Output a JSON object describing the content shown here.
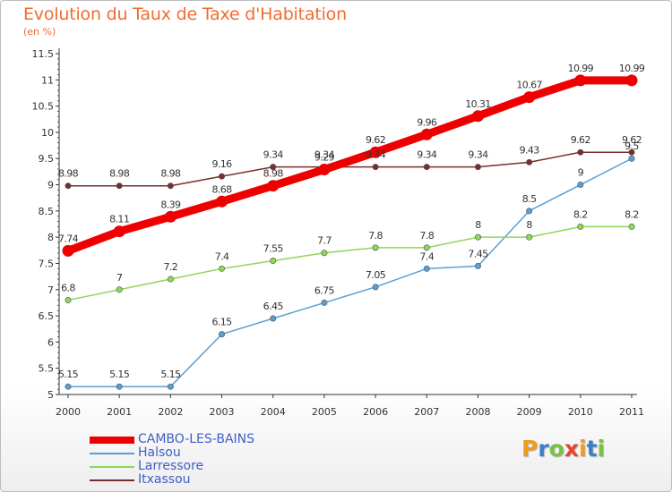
{
  "header": {
    "title": "Evolution du Taux de Taxe d'Habitation",
    "subtitle": "(en %)"
  },
  "colors": {
    "title": "#f26b30",
    "axis": "#333333",
    "legend_text": "#3e5fc8"
  },
  "logo": {
    "text": "Proxiti",
    "letters": [
      "P",
      "r",
      "o",
      "x",
      "i",
      "t",
      "i"
    ],
    "letter_colors": [
      "#f29a1d",
      "#3b82c4",
      "#7cc142",
      "#e8452c",
      "#f29a1d",
      "#3b82c4",
      "#7cc142"
    ]
  },
  "chart_data": {
    "type": "line",
    "title": "Evolution du Taux de Taxe d'Habitation",
    "subtitle": "(en %)",
    "xlabel": "",
    "ylabel": "",
    "x": [
      "2000",
      "2001",
      "2002",
      "2003",
      "2004",
      "2005",
      "2006",
      "2007",
      "2008",
      "2009",
      "2010",
      "2011"
    ],
    "ylim": [
      5,
      11.5
    ],
    "yticks": [
      5,
      5.5,
      6,
      6.5,
      7,
      7.5,
      8,
      8.5,
      9,
      9.5,
      10,
      10.5,
      11,
      11.5
    ],
    "ytick_labels": [
      "5",
      "5.5",
      "6",
      "6.5",
      "7",
      "7.5",
      "8",
      "8.5",
      "9",
      "9.5",
      "10",
      "10.5",
      "11",
      "11.5"
    ],
    "grid": false,
    "legend_position": "bottom-left",
    "series": [
      {
        "name": "CAMBO-LES-BAINS",
        "color": "#ee0000",
        "emphasis": "thick",
        "values": [
          7.74,
          8.11,
          8.39,
          8.68,
          8.98,
          9.29,
          9.62,
          9.96,
          10.31,
          10.67,
          10.99,
          10.99
        ],
        "labels": [
          "7.74",
          "8.11",
          "8.39",
          "8.68",
          "8.98",
          "9.29",
          "9.62",
          "9.96",
          "10.31",
          "10.67",
          "10.99",
          "10.99"
        ]
      },
      {
        "name": "Halsou",
        "color": "#5a9fd4",
        "values": [
          5.15,
          5.15,
          5.15,
          6.15,
          6.45,
          6.75,
          7.05,
          7.4,
          7.45,
          8.5,
          9,
          9.5
        ],
        "labels": [
          "5.15",
          "5.15",
          "5.15",
          "6.15",
          "6.45",
          "6.75",
          "7.05",
          "7.4",
          "7.45",
          "8.5",
          "9",
          "9.5"
        ]
      },
      {
        "name": "Larressore",
        "color": "#8fd65a",
        "values": [
          6.8,
          7,
          7.2,
          7.4,
          7.55,
          7.7,
          7.8,
          7.8,
          8,
          8,
          8.2,
          8.2
        ],
        "labels": [
          "6.8",
          "7",
          "7.2",
          "7.4",
          "7.55",
          "7.7",
          "7.8",
          "7.8",
          "8",
          "8",
          "8.2",
          "8.2"
        ]
      },
      {
        "name": "Itxassou",
        "color": "#7a2d2d",
        "values": [
          8.98,
          8.98,
          8.98,
          9.16,
          9.34,
          9.34,
          9.34,
          9.34,
          9.34,
          9.43,
          9.62,
          9.62
        ],
        "labels": [
          "8.98",
          "8.98",
          "8.98",
          "9.16",
          "9.34",
          "9.34",
          "9.34",
          "9.34",
          "9.34",
          "9.43",
          "9.62",
          "9.62"
        ]
      }
    ]
  }
}
